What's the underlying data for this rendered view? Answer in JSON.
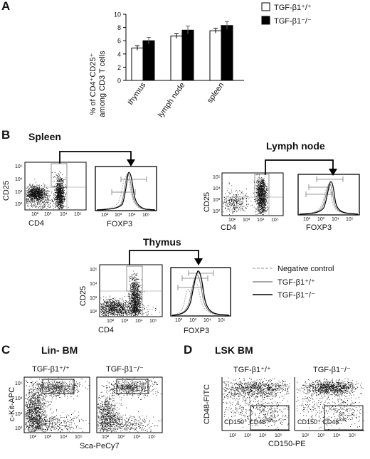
{
  "colors": {
    "wt": "#ffffff",
    "ko": "#000000",
    "neg": "#aaaaaa",
    "wt_line": "#888888",
    "ko_line": "#000000"
  },
  "panels": {
    "a": {
      "letter": "A"
    },
    "b": {
      "letter": "B"
    },
    "c": {
      "letter": "C"
    },
    "d": {
      "letter": "D"
    }
  },
  "chart_data": [
    {
      "id": "A",
      "type": "bar",
      "ylabel_line1": "% of CD4⁺CD25⁺",
      "ylabel_line2": "among CD3 T cells",
      "categories": [
        "thymus",
        "lymph node",
        "spleen"
      ],
      "ylim": [
        0,
        10
      ],
      "yticks": [
        "0",
        "2",
        "4",
        "6",
        "8",
        "10"
      ],
      "series": [
        {
          "name": "TGF-β1⁺/⁺",
          "values": [
            4.9,
            6.7,
            7.5
          ],
          "errors": [
            0.35,
            0.35,
            0.35
          ]
        },
        {
          "name": "TGF-β1⁻/⁻",
          "values": [
            6.0,
            7.6,
            8.3
          ],
          "errors": [
            0.5,
            0.6,
            0.6
          ]
        }
      ],
      "legend_position": "top-right"
    },
    {
      "id": "B",
      "type": "scatter",
      "title_spleen": "Spleen",
      "title_lymph": "Lymph node",
      "title_thymus": "Thymus",
      "xlabel_dot": "CD4",
      "ylabel_dot": "CD25",
      "xlabel_hist": "FOXP3",
      "log_ticks": [
        "10²",
        "10³",
        "10⁴",
        "10⁵"
      ],
      "legend": [
        "Negative control",
        "TGF-β1⁺/⁺",
        "TGF-β1⁻/⁻"
      ]
    },
    {
      "id": "C",
      "type": "scatter",
      "title": "Lin- BM",
      "xlabel": "Sca-PeCy7",
      "ylabel": "c-Kit-APC",
      "gate": "LSK",
      "subtitle_wt": "TGF-β1⁺/⁺",
      "subtitle_ko": "TGF-β1⁻/⁻",
      "log_ticks": [
        "10²",
        "10³",
        "10⁴",
        "10⁵"
      ]
    },
    {
      "id": "D",
      "type": "scatter",
      "title": "LSK BM",
      "xlabel": "CD150-PE",
      "ylabel": "CD48-FITC",
      "gate_text": "CD150⁺ CD48",
      "gate_sup": "low",
      "subtitle_wt": "TGF-β1⁺/⁺",
      "subtitle_ko": "TGF-β1⁻/⁻",
      "log_ticks": [
        "10²",
        "10³",
        "10⁴",
        "10⁵"
      ]
    }
  ]
}
